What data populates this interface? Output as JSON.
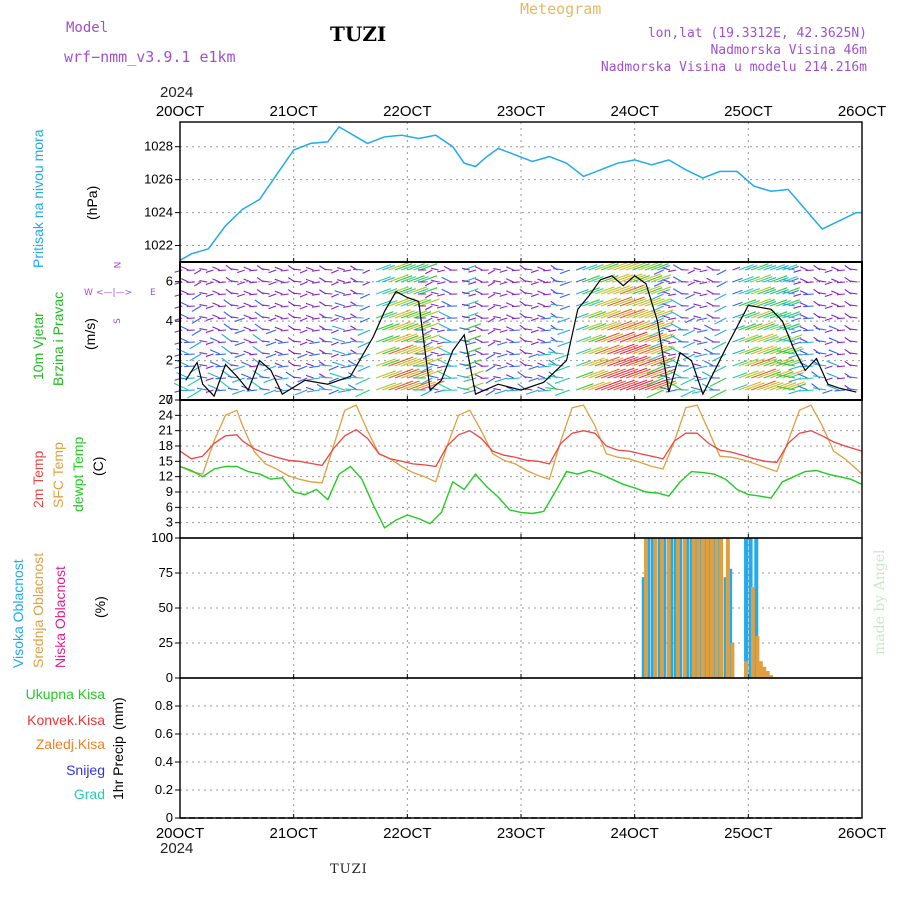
{
  "header": {
    "model_label": "Model",
    "model_name": "wrf−nmm_v3.9.1  e1km",
    "title": "TUZI",
    "meteogram_label": "Meteogram",
    "lonlat": "lon,lat (19.3312E, 42.3625N)",
    "elevation": "Nadmorska Visina 46m",
    "model_elevation": "Nadmorska Visina u modelu 214.216m"
  },
  "year_top": "2024",
  "year_bottom": "2024",
  "footer": "TUZI",
  "watermark": "made by Angel",
  "wind_compass": {
    "n": "N",
    "w": "W",
    "e": "E",
    "s": "S"
  },
  "colors": {
    "pressure": "#22aaee",
    "wind_label": "#22bb22",
    "temp2m": "#ee4444",
    "sfc_temp": "#e0a040",
    "dewpt": "#22cc22",
    "cloud_high": "#22aaee",
    "cloud_mid": "#e0a040",
    "cloud_low": "#e0208a",
    "precip_total": "#22cc22",
    "precip_conv": "#ee3333",
    "precip_frz": "#f08020",
    "snow": "#3333dd",
    "hail": "#22ccbb"
  },
  "chart_data": [
    {
      "type": "line",
      "panel": "pressure",
      "ylabel": "Pritisak na nivou mora",
      "unit": "(hPa)",
      "x_ticks": [
        "20OCT",
        "21OCT",
        "22OCT",
        "23OCT",
        "24OCT",
        "25OCT",
        "26OCT"
      ],
      "ylim": [
        1021,
        1029.5
      ],
      "y_ticks": [
        1022,
        1024,
        1026,
        1028
      ],
      "grid": true,
      "series": [
        {
          "x": [
            0,
            0.1,
            0.25,
            0.4,
            0.55,
            0.7,
            0.85,
            1.0,
            1.15,
            1.3,
            1.4,
            1.55,
            1.65,
            1.8,
            1.95,
            2.1,
            2.25,
            2.4,
            2.5,
            2.6,
            2.7,
            2.8,
            2.95,
            3.1,
            3.25,
            3.4,
            3.55,
            3.7,
            3.85,
            4.0,
            4.15,
            4.3,
            4.45,
            4.6,
            4.75,
            4.9,
            5.05,
            5.2,
            5.35,
            5.5,
            5.65,
            5.8,
            5.95,
            6.0
          ],
          "values": [
            1021.1,
            1021.5,
            1021.8,
            1023.2,
            1024.2,
            1024.8,
            1026.3,
            1027.8,
            1028.2,
            1028.3,
            1029.2,
            1028.6,
            1028.2,
            1028.6,
            1028.7,
            1028.5,
            1028.7,
            1028.0,
            1027.0,
            1026.8,
            1027.4,
            1027.9,
            1027.5,
            1027.1,
            1027.4,
            1027.0,
            1026.2,
            1026.6,
            1027.0,
            1027.2,
            1026.9,
            1027.2,
            1026.6,
            1026.1,
            1026.5,
            1026.5,
            1025.6,
            1025.3,
            1025.4,
            1024.2,
            1023.0,
            1023.5,
            1024.0,
            1024.0
          ]
        }
      ]
    },
    {
      "type": "line",
      "panel": "wind",
      "ylabel": "10m Vjetar",
      "ylabel2": "Brzina i Pravac",
      "unit": "(m/s)",
      "ylim": [
        0,
        7
      ],
      "y_ticks": [
        0,
        2,
        4,
        6
      ],
      "grid": true,
      "series": [
        {
          "name": "speed",
          "x": [
            0.05,
            0.15,
            0.2,
            0.3,
            0.4,
            0.5,
            0.6,
            0.7,
            0.8,
            0.9,
            1.1,
            1.3,
            1.5,
            1.7,
            1.8,
            1.9,
            2.0,
            2.1,
            2.2,
            2.3,
            2.4,
            2.5,
            2.6,
            2.8,
            3.0,
            3.2,
            3.4,
            3.5,
            3.6,
            3.7,
            3.8,
            3.9,
            4.0,
            4.1,
            4.2,
            4.3,
            4.4,
            4.5,
            4.6,
            4.8,
            5.0,
            5.1,
            5.2,
            5.3,
            5.4,
            5.5,
            5.6,
            5.7,
            5.8,
            5.95
          ],
          "values": [
            1.0,
            1.9,
            0.8,
            0.2,
            1.8,
            1.2,
            0.5,
            2.0,
            1.5,
            0.3,
            1.0,
            0.8,
            1.2,
            3.2,
            4.5,
            5.5,
            5.2,
            5.0,
            0.5,
            1.0,
            2.5,
            3.3,
            0.3,
            0.8,
            0.5,
            0.9,
            2.0,
            4.6,
            5.3,
            6.1,
            6.3,
            5.8,
            6.3,
            5.9,
            4.0,
            0.4,
            2.4,
            2.0,
            0.3,
            2.6,
            4.8,
            4.7,
            4.6,
            4.0,
            2.6,
            1.5,
            2.1,
            0.8,
            0.6,
            0.4
          ]
        }
      ]
    },
    {
      "type": "line",
      "panel": "temperature",
      "ylabel": "2m Temp",
      "ylabel2": "SFC Temp",
      "ylabel3": "dewpt Temp",
      "unit": "(C)",
      "ylim": [
        0,
        27
      ],
      "y_ticks": [
        0,
        3,
        6,
        9,
        12,
        15,
        18,
        21,
        24,
        27
      ],
      "grid": true,
      "series": [
        {
          "name": "2m Temp",
          "x": [
            0,
            0.1,
            0.2,
            0.3,
            0.4,
            0.5,
            0.55,
            0.65,
            0.75,
            0.85,
            0.95,
            1.05,
            1.15,
            1.25,
            1.35,
            1.45,
            1.55,
            1.65,
            1.75,
            1.85,
            1.95,
            2.05,
            2.15,
            2.25,
            2.35,
            2.45,
            2.55,
            2.65,
            2.75,
            2.85,
            2.95,
            3.05,
            3.15,
            3.25,
            3.35,
            3.45,
            3.55,
            3.65,
            3.75,
            3.85,
            3.95,
            4.05,
            4.15,
            4.25,
            4.35,
            4.45,
            4.55,
            4.65,
            4.75,
            4.85,
            4.95,
            5.05,
            5.15,
            5.25,
            5.35,
            5.45,
            5.55,
            5.65,
            5.75,
            5.85,
            6.0
          ],
          "values": [
            17,
            15.5,
            16,
            18.5,
            20,
            20.2,
            19,
            17.5,
            16.5,
            15.8,
            15.2,
            15.0,
            14.6,
            14.2,
            17.5,
            20,
            21.2,
            19.5,
            16.5,
            15.5,
            15.0,
            14.5,
            14.3,
            14.0,
            18,
            20.2,
            21.0,
            19.5,
            17,
            16.2,
            15.8,
            15.2,
            15.0,
            14.5,
            18.5,
            20.5,
            21.0,
            20.5,
            18,
            17.2,
            17.0,
            16.5,
            16.0,
            15.5,
            19,
            20.5,
            20.5,
            18.5,
            17.2,
            16.8,
            16.2,
            15.5,
            15.0,
            14.8,
            18.5,
            20.5,
            21.0,
            20,
            18.8,
            18.0,
            17.0
          ]
        },
        {
          "name": "SFC Temp",
          "x": [
            0,
            0.1,
            0.2,
            0.3,
            0.4,
            0.5,
            0.55,
            0.65,
            0.75,
            0.85,
            0.95,
            1.05,
            1.15,
            1.25,
            1.35,
            1.45,
            1.55,
            1.65,
            1.75,
            1.85,
            1.95,
            2.05,
            2.15,
            2.25,
            2.35,
            2.45,
            2.55,
            2.65,
            2.75,
            2.85,
            2.95,
            3.05,
            3.15,
            3.25,
            3.35,
            3.45,
            3.55,
            3.65,
            3.75,
            3.85,
            3.95,
            4.05,
            4.15,
            4.25,
            4.35,
            4.45,
            4.55,
            4.65,
            4.75,
            4.85,
            4.95,
            5.05,
            5.15,
            5.25,
            5.35,
            5.45,
            5.55,
            5.65,
            5.75,
            5.85,
            6.0
          ],
          "values": [
            14,
            13,
            12.5,
            19,
            24,
            25,
            22,
            17,
            14.5,
            13.5,
            12.2,
            11.5,
            11.0,
            10.8,
            18,
            25,
            26,
            21,
            16.5,
            15.5,
            14.0,
            12.8,
            12.0,
            11.0,
            18,
            24,
            25,
            21,
            16.5,
            15.2,
            14.5,
            13.2,
            12.2,
            11.5,
            19,
            25.5,
            26,
            22,
            16.5,
            15.8,
            15.5,
            14.8,
            14.0,
            13.5,
            19,
            25.5,
            26,
            21,
            16,
            15.8,
            15.3,
            14.6,
            13.8,
            13.0,
            19,
            25,
            26,
            22,
            17,
            15.5,
            12.5
          ]
        },
        {
          "name": "dewpt Temp",
          "x": [
            0,
            0.1,
            0.2,
            0.3,
            0.4,
            0.5,
            0.6,
            0.7,
            0.8,
            0.9,
            1.0,
            1.1,
            1.2,
            1.3,
            1.4,
            1.5,
            1.6,
            1.7,
            1.8,
            1.9,
            2.0,
            2.1,
            2.2,
            2.3,
            2.4,
            2.5,
            2.6,
            2.7,
            2.8,
            2.9,
            3.0,
            3.1,
            3.2,
            3.3,
            3.4,
            3.5,
            3.6,
            3.7,
            3.8,
            3.9,
            4.0,
            4.1,
            4.2,
            4.3,
            4.4,
            4.5,
            4.6,
            4.7,
            4.8,
            4.9,
            5.0,
            5.1,
            5.2,
            5.3,
            5.4,
            5.5,
            5.6,
            5.7,
            5.8,
            5.9,
            6.0
          ],
          "values": [
            14,
            13.2,
            12,
            13.5,
            14,
            14,
            13,
            12.5,
            11.5,
            11.8,
            9.0,
            8.5,
            9.5,
            7.5,
            12.5,
            14,
            11.5,
            6.5,
            2.0,
            3.5,
            4.5,
            3.8,
            2.8,
            5,
            11,
            9.5,
            12.5,
            10,
            8,
            5.5,
            5.0,
            4.8,
            5.2,
            9,
            13,
            12.5,
            13.2,
            12.5,
            11.5,
            10.5,
            9.8,
            9.0,
            8.8,
            8.2,
            11,
            13,
            12.8,
            12.5,
            11.5,
            9.5,
            8.5,
            8.2,
            7.8,
            11,
            12,
            13,
            13.2,
            12.5,
            12.0,
            11.5,
            10.5
          ]
        }
      ]
    },
    {
      "type": "bar",
      "panel": "cloud",
      "ylabel": "Visoka Oblacnost",
      "ylabel2": "Srednja Oblacnost",
      "ylabel3": "Niska Oblacnost",
      "unit": "(%)",
      "ylim": [
        0,
        100
      ],
      "y_ticks": [
        0,
        25,
        50,
        75,
        100
      ],
      "grid": true,
      "series": [
        {
          "name": "Visoka Oblacnost",
          "x": [
            4.08,
            4.12,
            4.16,
            4.22,
            4.26,
            4.32,
            4.36,
            4.4,
            4.46,
            4.5,
            4.54,
            4.58,
            4.62,
            4.66,
            4.7,
            4.74,
            4.8,
            4.84,
            4.98,
            5.02,
            5.07
          ],
          "values": [
            72,
            100,
            100,
            100,
            100,
            100,
            100,
            100,
            100,
            100,
            100,
            100,
            100,
            100,
            100,
            100,
            72,
            78,
            100,
            100,
            100
          ]
        },
        {
          "name": "Srednja Oblacnost",
          "x": [
            4.1,
            4.18,
            4.24,
            4.3,
            4.38,
            4.44,
            4.52,
            4.56,
            4.6,
            4.64,
            4.68,
            4.72,
            4.76,
            4.82,
            4.86,
            4.98,
            5.04,
            5.08,
            5.11,
            5.14,
            5.17,
            5.2
          ],
          "values": [
            100,
            100,
            100,
            100,
            100,
            100,
            100,
            100,
            100,
            100,
            100,
            100,
            100,
            100,
            25,
            12,
            65,
            30,
            12,
            8,
            5,
            2
          ]
        },
        {
          "name": "Niska Oblacnost",
          "x": [],
          "values": []
        }
      ]
    },
    {
      "type": "line",
      "panel": "precip",
      "ylabel": "1hr Precip",
      "unit": "(mm)",
      "ylim": [
        0,
        1.0
      ],
      "y_ticks": [
        0,
        0.2,
        0.4,
        0.6,
        0.8
      ],
      "x_ticks": [
        "20OCT",
        "21OCT",
        "22OCT",
        "23OCT",
        "24OCT",
        "25OCT",
        "26OCT"
      ],
      "grid": true,
      "legend": [
        "Ukupna Kisa",
        "Konvek.Kisa",
        "Zaledj.Kisa",
        "Snijeg",
        "Grad"
      ],
      "series": []
    }
  ]
}
